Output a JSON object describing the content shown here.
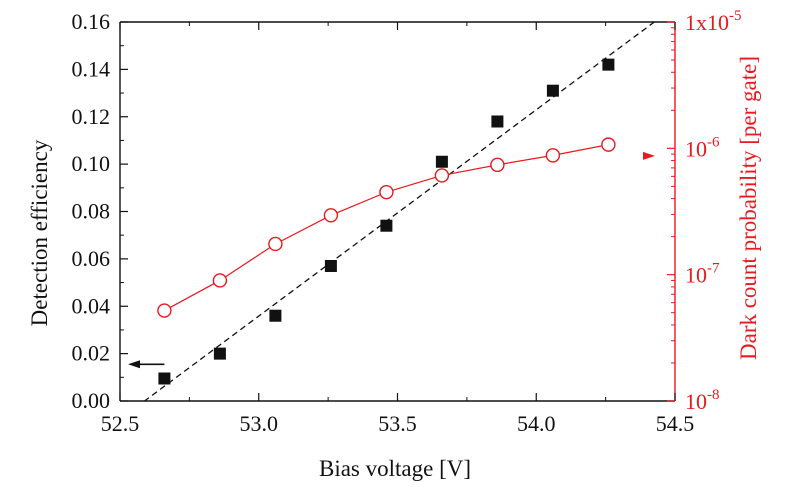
{
  "chart_data": {
    "type": "scatter",
    "xlabel": "Bias voltage [V]",
    "ylabel_left": "Detection efficiency",
    "ylabel_right": "Dark count probability [per gate]",
    "xlim": [
      52.5,
      54.5
    ],
    "ylim_left": [
      0.0,
      0.16
    ],
    "ylim_right": [
      1e-08,
      1e-05
    ],
    "right_axis_scale": "log",
    "x_tick_labels": [
      "52.5",
      "53.0",
      "53.5",
      "54.0",
      "54.5"
    ],
    "x_ticks": [
      52.5,
      53.0,
      53.5,
      54.0,
      54.5
    ],
    "y_left_tick_labels": [
      "0.00",
      "0.02",
      "0.04",
      "0.06",
      "0.08",
      "0.10",
      "0.12",
      "0.14",
      "0.16"
    ],
    "y_left_ticks": [
      0.0,
      0.02,
      0.04,
      0.06,
      0.08,
      0.1,
      0.12,
      0.14,
      0.16
    ],
    "y_right_ticks": [
      {
        "value": 1e-08,
        "base": "10",
        "exp": "-8"
      },
      {
        "value": 1e-07,
        "base": "10",
        "exp": "-7"
      },
      {
        "value": 1e-06,
        "base": "10",
        "exp": "-6"
      },
      {
        "value": 1e-05,
        "base": "1x10",
        "exp": "-5"
      }
    ],
    "series": [
      {
        "axis": "left",
        "marker": "filled-square",
        "color": "#111111",
        "x": [
          52.66,
          52.86,
          53.06,
          53.26,
          53.46,
          53.66,
          53.86,
          54.06,
          54.26
        ],
        "y": [
          0.0095,
          0.02,
          0.036,
          0.057,
          0.074,
          0.101,
          0.118,
          0.131,
          0.142
        ]
      },
      {
        "axis": "right",
        "marker": "open-circle",
        "color": "#e8191f",
        "connected": true,
        "x": [
          52.66,
          52.86,
          53.06,
          53.26,
          53.46,
          53.66,
          53.86,
          54.06,
          54.26
        ],
        "y": [
          5.2e-08,
          9e-08,
          1.75e-07,
          2.95e-07,
          4.5e-07,
          6.1e-07,
          7.4e-07,
          8.8e-07,
          1.07e-06
        ]
      }
    ],
    "fit_line": {
      "axis": "left",
      "style": "dashed",
      "color": "#111111",
      "x": [
        52.5,
        54.5
      ],
      "y": [
        -0.0077,
        0.1665
      ]
    },
    "annotations": [
      {
        "type": "arrow",
        "direction": "left",
        "color": "#111111",
        "indicates": "left axis",
        "x": 52.66,
        "y_left": 0.0155
      },
      {
        "type": "arrow",
        "direction": "right",
        "color": "#e8191f",
        "indicates": "right axis",
        "x": 54.26,
        "y_left": 0.1035
      }
    ],
    "grid": false,
    "legend": "none",
    "colors": {
      "left_axis": "#111111",
      "right_axis": "#e8191f"
    }
  }
}
